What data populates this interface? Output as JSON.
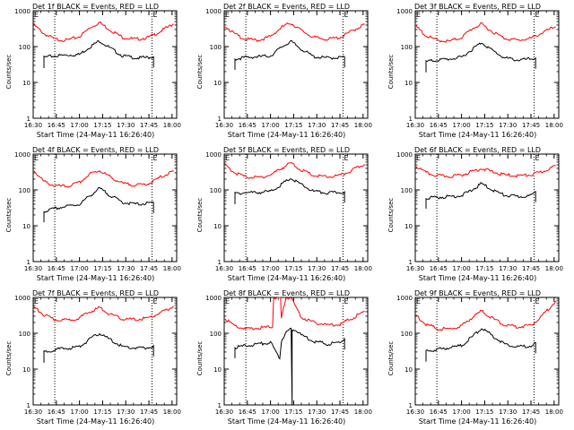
{
  "chart_data": [
    {
      "type": "line",
      "title": "Det 1f BLACK = Events, RED = LLD",
      "xlabel": "Start Time (24-May-11 16:26:40)",
      "ylabel": "Counts/sec",
      "ylim": [
        1,
        1000
      ],
      "yscale": "log",
      "x_ticks": [
        "16:30",
        "16:45",
        "17:00",
        "17:15",
        "17:30",
        "17:45",
        "18:00"
      ],
      "y_ticks": [
        "1",
        "10",
        "100",
        "1000"
      ],
      "grid": false,
      "vlines": [
        "16:44",
        "17:47"
      ],
      "markers": [
        {
          "x": "16:30",
          "text": "E"
        },
        {
          "x": "17:47",
          "text": "E"
        }
      ],
      "series": [
        {
          "name": "RED = LLD",
          "color": "#ff0000",
          "x": [
            "16:30",
            "16:37",
            "16:44",
            "16:52",
            "17:00",
            "17:07",
            "17:13",
            "17:20",
            "17:28",
            "17:37",
            "17:45",
            "17:52",
            "18:01"
          ],
          "values": [
            420,
            230,
            160,
            150,
            190,
            340,
            470,
            290,
            180,
            160,
            180,
            260,
            430
          ]
        },
        {
          "name": "BLACK = Events",
          "color": "#000000",
          "x": [
            "16:37",
            "16:44",
            "16:52",
            "17:00",
            "17:07",
            "17:13",
            "17:20",
            "17:28",
            "17:37",
            "17:45",
            "17:48"
          ],
          "values": [
            50,
            55,
            58,
            60,
            100,
            145,
            90,
            55,
            48,
            50,
            52
          ]
        }
      ]
    },
    {
      "type": "line",
      "title": "Det 2f BLACK = Events, RED = LLD",
      "xlabel": "Start Time (24-May-11 16:26:40)",
      "ylabel": "Counts/sec",
      "ylim": [
        1,
        1000
      ],
      "yscale": "log",
      "x_ticks": [
        "16:30",
        "16:45",
        "17:00",
        "17:15",
        "17:30",
        "17:45",
        "18:00"
      ],
      "y_ticks": [
        "1",
        "10",
        "100",
        "1000"
      ],
      "grid": false,
      "vlines": [
        "16:44",
        "17:47"
      ],
      "markers": [
        {
          "x": "16:30",
          "text": "E"
        },
        {
          "x": "17:47",
          "text": "E"
        }
      ],
      "series": [
        {
          "name": "RED = LLD",
          "color": "#ff0000",
          "x": [
            "16:30",
            "16:37",
            "16:44",
            "16:52",
            "17:00",
            "17:07",
            "17:13",
            "17:20",
            "17:28",
            "17:37",
            "17:45",
            "17:52",
            "18:01"
          ],
          "values": [
            400,
            220,
            160,
            150,
            190,
            340,
            460,
            280,
            180,
            160,
            180,
            260,
            420
          ]
        },
        {
          "name": "BLACK = Events",
          "color": "#000000",
          "x": [
            "16:37",
            "16:44",
            "16:52",
            "17:00",
            "17:07",
            "17:13",
            "17:20",
            "17:28",
            "17:37",
            "17:45",
            "17:48"
          ],
          "values": [
            45,
            50,
            52,
            55,
            95,
            140,
            85,
            52,
            48,
            50,
            52
          ]
        }
      ]
    },
    {
      "type": "line",
      "title": "Det 3f BLACK = Events, RED = LLD",
      "xlabel": "Start Time (24-May-11 16:26:40)",
      "ylabel": "Counts/sec",
      "ylim": [
        1,
        1000
      ],
      "yscale": "log",
      "x_ticks": [
        "16:30",
        "16:45",
        "17:00",
        "17:15",
        "17:30",
        "17:45",
        "18:00"
      ],
      "y_ticks": [
        "1",
        "10",
        "100",
        "1000"
      ],
      "grid": false,
      "vlines": [
        "16:44",
        "17:47"
      ],
      "markers": [
        {
          "x": "16:30",
          "text": "E"
        },
        {
          "x": "17:47",
          "text": "E"
        }
      ],
      "series": [
        {
          "name": "RED = LLD",
          "color": "#ff0000",
          "x": [
            "16:30",
            "16:37",
            "16:44",
            "16:52",
            "17:00",
            "17:07",
            "17:13",
            "17:20",
            "17:28",
            "17:37",
            "17:45",
            "17:52",
            "18:01"
          ],
          "values": [
            380,
            200,
            150,
            140,
            180,
            320,
            420,
            260,
            170,
            150,
            170,
            240,
            360
          ]
        },
        {
          "name": "BLACK = Events",
          "color": "#000000",
          "x": [
            "16:37",
            "16:44",
            "16:52",
            "17:00",
            "17:07",
            "17:13",
            "17:20",
            "17:28",
            "17:37",
            "17:45",
            "17:48"
          ],
          "values": [
            38,
            42,
            45,
            50,
            85,
            130,
            78,
            48,
            42,
            45,
            48
          ]
        }
      ]
    },
    {
      "type": "line",
      "title": "Det 4f BLACK = Events, RED = LLD",
      "xlabel": "Start Time (24-May-11 16:26:40)",
      "ylabel": "Counts/sec",
      "ylim": [
        1,
        1000
      ],
      "yscale": "log",
      "x_ticks": [
        "16:30",
        "16:45",
        "17:00",
        "17:15",
        "17:30",
        "17:45",
        "18:00"
      ],
      "y_ticks": [
        "1",
        "10",
        "100",
        "1000"
      ],
      "grid": false,
      "vlines": [
        "16:44",
        "17:47"
      ],
      "markers": [
        {
          "x": "16:30",
          "text": "E"
        },
        {
          "x": "17:47",
          "text": "E"
        }
      ],
      "series": [
        {
          "name": "RED = LLD",
          "color": "#ff0000",
          "x": [
            "16:30",
            "16:37",
            "16:44",
            "16:52",
            "17:00",
            "17:07",
            "17:13",
            "17:20",
            "17:28",
            "17:37",
            "17:45",
            "17:52",
            "18:01"
          ],
          "values": [
            360,
            170,
            130,
            125,
            160,
            280,
            350,
            230,
            150,
            135,
            150,
            220,
            330
          ]
        },
        {
          "name": "BLACK = Events",
          "color": "#000000",
          "x": [
            "16:37",
            "16:44",
            "16:52",
            "17:00",
            "17:07",
            "17:13",
            "17:20",
            "17:28",
            "17:37",
            "17:45",
            "17:48"
          ],
          "values": [
            25,
            30,
            35,
            40,
            70,
            110,
            70,
            45,
            40,
            42,
            45
          ]
        }
      ]
    },
    {
      "type": "line",
      "title": "Det 5f BLACK = Events, RED = LLD",
      "xlabel": "Start Time (24-May-11 16:26:40)",
      "ylabel": "Counts/sec",
      "ylim": [
        1,
        1000
      ],
      "yscale": "log",
      "x_ticks": [
        "16:30",
        "16:45",
        "17:00",
        "17:15",
        "17:30",
        "17:45",
        "18:00"
      ],
      "y_ticks": [
        "1",
        "10",
        "100",
        "1000"
      ],
      "grid": false,
      "vlines": [
        "16:44",
        "17:47"
      ],
      "markers": [
        {
          "x": "16:30",
          "text": "E"
        },
        {
          "x": "17:47",
          "text": "E"
        }
      ],
      "series": [
        {
          "name": "RED = LLD",
          "color": "#ff0000",
          "x": [
            "16:30",
            "16:37",
            "16:44",
            "16:52",
            "17:00",
            "17:07",
            "17:13",
            "17:20",
            "17:28",
            "17:37",
            "17:45",
            "17:52",
            "18:01"
          ],
          "values": [
            520,
            300,
            230,
            220,
            260,
            400,
            560,
            360,
            250,
            230,
            250,
            340,
            520
          ]
        },
        {
          "name": "BLACK = Events",
          "color": "#000000",
          "x": [
            "16:37",
            "16:44",
            "16:52",
            "17:00",
            "17:07",
            "17:13",
            "17:20",
            "17:28",
            "17:37",
            "17:45",
            "17:48"
          ],
          "values": [
            80,
            85,
            85,
            90,
            140,
            210,
            140,
            90,
            82,
            85,
            88
          ]
        }
      ]
    },
    {
      "type": "line",
      "title": "Det 6f BLACK = Events, RED = LLD",
      "xlabel": "Start Time (24-May-11 16:26:40)",
      "ylabel": "Counts/sec",
      "ylim": [
        1,
        1000
      ],
      "yscale": "log",
      "x_ticks": [
        "16:30",
        "16:45",
        "17:00",
        "17:15",
        "17:30",
        "17:45",
        "18:00"
      ],
      "y_ticks": [
        "1",
        "10",
        "100",
        "1000"
      ],
      "grid": false,
      "vlines": [
        "16:44",
        "17:47"
      ],
      "markers": [
        {
          "x": "16:30",
          "text": "E"
        },
        {
          "x": "17:47",
          "text": "E"
        }
      ],
      "series": [
        {
          "name": "RED = LLD",
          "color": "#ff0000",
          "x": [
            "16:30",
            "16:37",
            "16:44",
            "16:52",
            "17:00",
            "17:07",
            "17:13",
            "17:20",
            "17:28",
            "17:37",
            "17:45",
            "17:52",
            "18:01"
          ],
          "values": [
            470,
            300,
            250,
            240,
            260,
            330,
            400,
            320,
            260,
            250,
            260,
            320,
            460
          ]
        },
        {
          "name": "BLACK = Events",
          "color": "#000000",
          "x": [
            "16:37",
            "16:44",
            "16:52",
            "17:00",
            "17:07",
            "17:13",
            "17:20",
            "17:28",
            "17:37",
            "17:45",
            "17:48"
          ],
          "values": [
            60,
            62,
            65,
            70,
            100,
            150,
            100,
            70,
            65,
            68,
            90
          ]
        }
      ]
    },
    {
      "type": "line",
      "title": "Det 7f BLACK = Events, RED = LLD",
      "xlabel": "Start Time (24-May-11 16:26:40)",
      "ylabel": "Counts/sec",
      "ylim": [
        1,
        1000
      ],
      "yscale": "log",
      "x_ticks": [
        "16:30",
        "16:45",
        "17:00",
        "17:15",
        "17:30",
        "17:45",
        "18:00"
      ],
      "y_ticks": [
        "1",
        "10",
        "100",
        "1000"
      ],
      "grid": false,
      "vlines": [
        "16:44",
        "17:47"
      ],
      "markers": [
        {
          "x": "16:30",
          "text": "E"
        },
        {
          "x": "17:47",
          "text": "E"
        }
      ],
      "series": [
        {
          "name": "RED = LLD",
          "color": "#ff0000",
          "x": [
            "16:30",
            "16:37",
            "16:44",
            "16:52",
            "17:00",
            "17:07",
            "17:13",
            "17:20",
            "17:28",
            "17:37",
            "17:45",
            "17:52",
            "18:01"
          ],
          "values": [
            560,
            320,
            240,
            230,
            270,
            400,
            520,
            330,
            250,
            240,
            270,
            360,
            560
          ]
        },
        {
          "name": "BLACK = Events",
          "color": "#000000",
          "x": [
            "16:37",
            "16:44",
            "16:52",
            "17:00",
            "17:07",
            "17:13",
            "17:20",
            "17:28",
            "17:37",
            "17:45",
            "17:48"
          ],
          "values": [
            30,
            35,
            38,
            42,
            70,
            100,
            65,
            42,
            38,
            40,
            45
          ]
        }
      ]
    },
    {
      "type": "line",
      "title": "Det 8f BLACK = Events, RED = LLD",
      "xlabel": "Start Time (24-May-11 16:26:40)",
      "ylabel": "Counts/sec",
      "ylim": [
        1,
        1000
      ],
      "yscale": "log",
      "x_ticks": [
        "16:30",
        "16:45",
        "17:00",
        "17:15",
        "17:30",
        "17:45",
        "18:00"
      ],
      "y_ticks": [
        "1",
        "10",
        "100",
        "1000"
      ],
      "grid": false,
      "vlines": [
        "16:44",
        "17:47"
      ],
      "markers": [
        {
          "x": "16:30",
          "text": "E"
        },
        {
          "x": "17:47",
          "text": "E"
        }
      ],
      "series": [
        {
          "name": "RED = LLD",
          "color": "#ff0000",
          "x": [
            "16:30",
            "16:37",
            "16:44",
            "16:52",
            "17:00",
            "17:02",
            "17:03",
            "17:06",
            "17:07",
            "17:10",
            "17:11",
            "17:13",
            "17:20",
            "17:28",
            "17:37",
            "17:45",
            "17:52",
            "18:01"
          ],
          "values": [
            260,
            160,
            130,
            140,
            150,
            1000,
            1000,
            1000,
            250,
            1000,
            1000,
            1000,
            280,
            200,
            170,
            180,
            250,
            400
          ]
        },
        {
          "name": "BLACK = Events",
          "color": "#000000",
          "x": [
            "16:37",
            "16:44",
            "16:52",
            "17:00",
            "17:06",
            "17:07",
            "17:09",
            "17:12",
            "17:14",
            "17:14",
            "17:15",
            "17:20",
            "17:28",
            "17:37",
            "17:45",
            "17:48"
          ],
          "values": [
            40,
            45,
            50,
            55,
            20,
            60,
            90,
            125,
            1,
            130,
            130,
            90,
            60,
            50,
            55,
            70
          ]
        }
      ]
    },
    {
      "type": "line",
      "title": "Det 9f BLACK = Events, RED = LLD",
      "xlabel": "Start Time (24-May-11 16:26:40)",
      "ylabel": "Counts/sec",
      "ylim": [
        1,
        1000
      ],
      "yscale": "log",
      "x_ticks": [
        "16:30",
        "16:45",
        "17:00",
        "17:15",
        "17:30",
        "17:45",
        "18:00"
      ],
      "y_ticks": [
        "1",
        "10",
        "100",
        "1000"
      ],
      "grid": false,
      "vlines": [
        "16:44",
        "17:47"
      ],
      "markers": [
        {
          "x": "16:30",
          "text": "E"
        },
        {
          "x": "17:47",
          "text": "E"
        }
      ],
      "series": [
        {
          "name": "RED = LLD",
          "color": "#ff0000",
          "x": [
            "16:30",
            "16:37",
            "16:44",
            "16:52",
            "17:00",
            "17:07",
            "17:13",
            "17:20",
            "17:28",
            "17:37",
            "17:45",
            "17:52",
            "18:01"
          ],
          "values": [
            330,
            180,
            135,
            130,
            160,
            280,
            420,
            260,
            170,
            150,
            170,
            300,
            800
          ]
        },
        {
          "name": "BLACK = Events",
          "color": "#000000",
          "x": [
            "16:37",
            "16:44",
            "16:52",
            "17:00",
            "17:07",
            "17:13",
            "17:20",
            "17:28",
            "17:37",
            "17:45",
            "17:48"
          ],
          "values": [
            32,
            35,
            40,
            45,
            80,
            140,
            85,
            50,
            42,
            45,
            55
          ]
        }
      ]
    }
  ]
}
